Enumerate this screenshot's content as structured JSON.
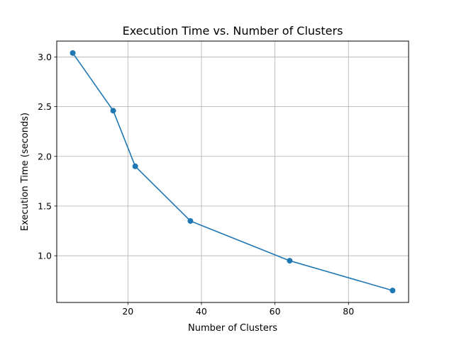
{
  "chart_data": {
    "type": "line",
    "title": "Execution Time vs. Number of Clusters",
    "xlabel": "Number of Clusters",
    "ylabel": "Execution Time (seconds)",
    "xlim": [
      0.65,
      96.35
    ],
    "ylim": [
      0.53,
      3.16
    ],
    "xticks": [
      20,
      40,
      60,
      80
    ],
    "yticks": [
      1.0,
      1.5,
      2.0,
      2.5,
      3.0
    ],
    "xtick_labels": [
      "20",
      "40",
      "60",
      "80"
    ],
    "ytick_labels": [
      "1.0",
      "1.5",
      "2.0",
      "2.5",
      "3.0"
    ],
    "grid": true,
    "series": [
      {
        "x": [
          5,
          16,
          22,
          37,
          64,
          92
        ],
        "y": [
          3.04,
          2.46,
          1.9,
          1.35,
          0.95,
          0.65
        ],
        "color": "#1f77b4",
        "marker": "circle"
      }
    ]
  }
}
